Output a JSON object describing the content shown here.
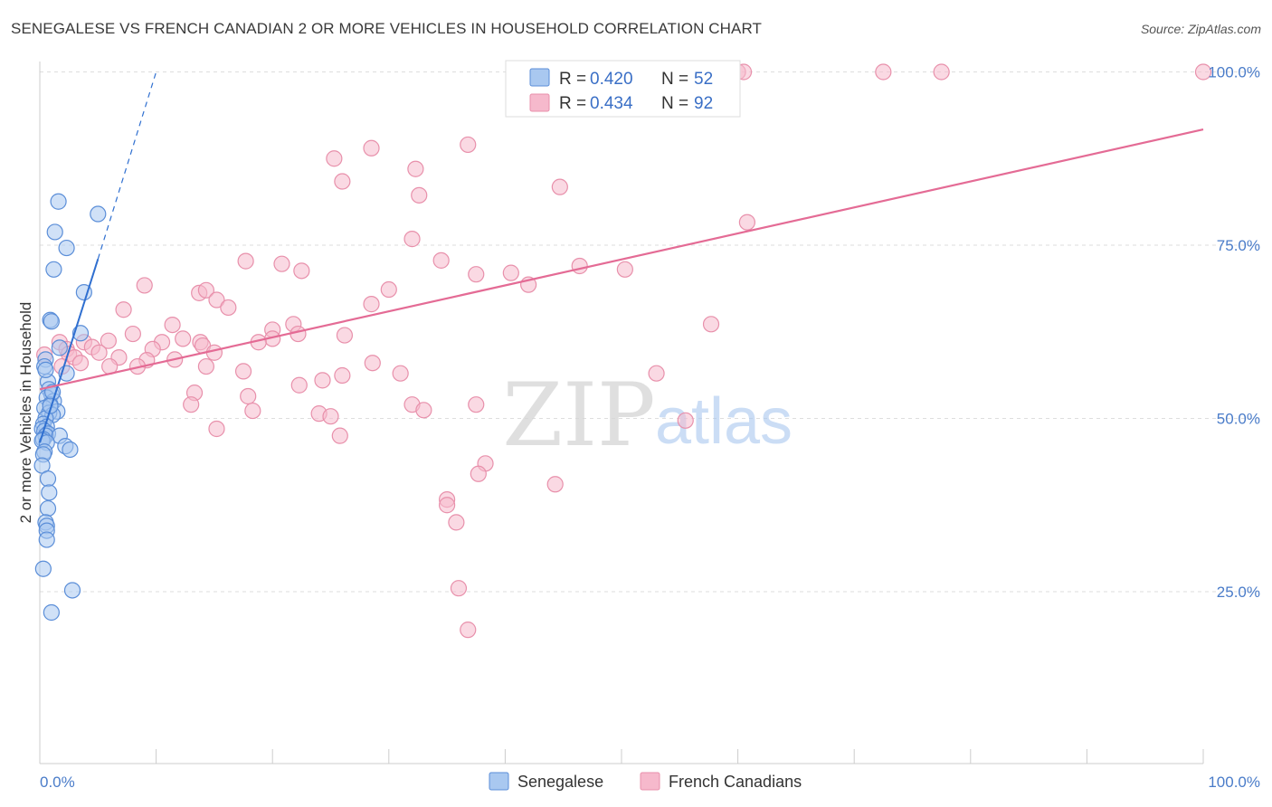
{
  "title": "SENEGALESE VS FRENCH CANADIAN 2 OR MORE VEHICLES IN HOUSEHOLD CORRELATION CHART",
  "source": "Source: ZipAtlas.com",
  "watermark": {
    "zip": "ZIP",
    "atlas": "atlas"
  },
  "colors": {
    "senegalese_fill": "#a9c8f0",
    "senegalese_stroke": "#5b8ed8",
    "senegalese_line": "#2f6fd0",
    "french_fill": "#f6b9cc",
    "french_stroke": "#e890ab",
    "french_line": "#e46b95",
    "tick_label": "#4a7cc9",
    "grid": "#dddddd"
  },
  "legend_top": [
    {
      "r_label": "R = ",
      "r_value": "0.420",
      "n_label": "N = ",
      "n_value": "52"
    },
    {
      "r_label": "R = ",
      "r_value": "0.434",
      "n_label": "N = ",
      "n_value": "92"
    }
  ],
  "chart_data": {
    "type": "scatter",
    "title": "SENEGALESE VS FRENCH CANADIAN 2 OR MORE VEHICLES IN HOUSEHOLD CORRELATION CHART",
    "xlabel": "",
    "ylabel": "2 or more Vehicles in Household",
    "xlim": [
      0,
      100
    ],
    "ylim": [
      0,
      103
    ],
    "x_tick_labels": [
      "0.0%",
      "100.0%"
    ],
    "y_ticks": [
      25,
      50,
      75,
      100
    ],
    "y_tick_labels": [
      "25.0%",
      "50.0%",
      "75.0%",
      "100.0%"
    ],
    "grid": "horizontal dashed",
    "legend_position": "bottom-center",
    "series": [
      {
        "name": "Senegalese",
        "r": 0.42,
        "n": 52,
        "trend": {
          "x0": 0.0,
          "y0": 46.5,
          "x1": 5.0,
          "y1": 73.0,
          "dashed_to": [
            10.0,
            100.0
          ]
        },
        "points": [
          [
            1.6,
            81.3
          ],
          [
            5.0,
            79.5
          ],
          [
            1.3,
            76.9
          ],
          [
            2.3,
            74.6
          ],
          [
            1.2,
            71.5
          ],
          [
            3.8,
            68.2
          ],
          [
            0.9,
            64.2
          ],
          [
            1.0,
            64.0
          ],
          [
            3.5,
            62.3
          ],
          [
            1.7,
            60.2
          ],
          [
            0.5,
            58.5
          ],
          [
            0.4,
            57.5
          ],
          [
            2.3,
            56.5
          ],
          [
            0.7,
            55.3
          ],
          [
            0.8,
            54.2
          ],
          [
            1.0,
            53.5
          ],
          [
            0.6,
            53.0
          ],
          [
            1.2,
            52.5
          ],
          [
            0.9,
            52.0
          ],
          [
            0.4,
            51.5
          ],
          [
            1.5,
            51.0
          ],
          [
            0.8,
            50.8
          ],
          [
            1.1,
            50.5
          ],
          [
            0.5,
            50.0
          ],
          [
            0.3,
            49.2
          ],
          [
            0.6,
            48.8
          ],
          [
            0.2,
            48.5
          ],
          [
            0.4,
            48.2
          ],
          [
            0.7,
            47.8
          ],
          [
            0.5,
            47.5
          ],
          [
            1.7,
            47.5
          ],
          [
            0.3,
            47.0
          ],
          [
            0.2,
            46.8
          ],
          [
            0.6,
            46.5
          ],
          [
            2.2,
            46.0
          ],
          [
            2.6,
            45.5
          ],
          [
            0.4,
            45.2
          ],
          [
            0.3,
            44.8
          ],
          [
            0.2,
            43.2
          ],
          [
            0.7,
            41.3
          ],
          [
            0.8,
            39.3
          ],
          [
            0.7,
            37.0
          ],
          [
            0.5,
            35.0
          ],
          [
            0.6,
            34.5
          ],
          [
            0.6,
            33.8
          ],
          [
            0.6,
            32.5
          ],
          [
            0.3,
            28.3
          ],
          [
            2.8,
            25.2
          ],
          [
            1.0,
            22.0
          ],
          [
            0.5,
            57.0
          ],
          [
            1.1,
            53.8
          ],
          [
            0.9,
            51.8
          ]
        ]
      },
      {
        "name": "French Canadians",
        "r": 0.434,
        "n": 92,
        "trend": {
          "x0": 0.0,
          "y0": 54.2,
          "x1": 100.0,
          "y1": 91.7
        },
        "points": [
          [
            48.0,
            100
          ],
          [
            48.3,
            100
          ],
          [
            60.0,
            100
          ],
          [
            60.5,
            100
          ],
          [
            72.5,
            100
          ],
          [
            77.5,
            100
          ],
          [
            100.0,
            100
          ],
          [
            36.8,
            89.5
          ],
          [
            28.5,
            89.0
          ],
          [
            25.3,
            87.5
          ],
          [
            32.3,
            86.0
          ],
          [
            26.0,
            84.2
          ],
          [
            44.7,
            83.4
          ],
          [
            32.6,
            82.2
          ],
          [
            60.8,
            78.3
          ],
          [
            32.0,
            75.9
          ],
          [
            17.7,
            72.7
          ],
          [
            34.5,
            72.8
          ],
          [
            20.8,
            72.3
          ],
          [
            22.5,
            71.3
          ],
          [
            40.5,
            71.0
          ],
          [
            50.3,
            71.5
          ],
          [
            46.4,
            72.0
          ],
          [
            37.5,
            70.8
          ],
          [
            42.0,
            69.3
          ],
          [
            9.0,
            69.2
          ],
          [
            30.0,
            68.6
          ],
          [
            13.7,
            68.1
          ],
          [
            14.3,
            68.5
          ],
          [
            15.2,
            67.1
          ],
          [
            28.5,
            66.5
          ],
          [
            16.2,
            66.0
          ],
          [
            7.2,
            65.7
          ],
          [
            11.4,
            63.5
          ],
          [
            21.8,
            63.6
          ],
          [
            20.0,
            62.8
          ],
          [
            57.7,
            63.6
          ],
          [
            8.0,
            62.2
          ],
          [
            22.2,
            62.2
          ],
          [
            26.2,
            62.0
          ],
          [
            12.3,
            61.5
          ],
          [
            20.0,
            61.5
          ],
          [
            1.7,
            61.0
          ],
          [
            3.8,
            61.0
          ],
          [
            5.9,
            61.2
          ],
          [
            10.5,
            61.0
          ],
          [
            13.8,
            61.0
          ],
          [
            18.8,
            61.0
          ],
          [
            4.5,
            60.3
          ],
          [
            14.0,
            60.5
          ],
          [
            2.3,
            60.0
          ],
          [
            9.7,
            60.0
          ],
          [
            15.0,
            59.5
          ],
          [
            2.5,
            59.3
          ],
          [
            5.1,
            59.5
          ],
          [
            0.4,
            59.2
          ],
          [
            3.0,
            58.8
          ],
          [
            6.8,
            58.8
          ],
          [
            9.2,
            58.4
          ],
          [
            3.5,
            58.0
          ],
          [
            11.6,
            58.5
          ],
          [
            28.6,
            58.0
          ],
          [
            1.9,
            57.5
          ],
          [
            6.0,
            57.5
          ],
          [
            8.4,
            57.5
          ],
          [
            14.3,
            57.5
          ],
          [
            17.5,
            56.8
          ],
          [
            31.0,
            56.5
          ],
          [
            26.0,
            56.2
          ],
          [
            53.0,
            56.5
          ],
          [
            24.3,
            55.5
          ],
          [
            22.3,
            54.8
          ],
          [
            13.3,
            53.7
          ],
          [
            17.9,
            53.2
          ],
          [
            13.0,
            52.0
          ],
          [
            32.0,
            52.0
          ],
          [
            37.5,
            52.0
          ],
          [
            18.3,
            51.1
          ],
          [
            33.0,
            51.2
          ],
          [
            24.0,
            50.7
          ],
          [
            25.0,
            50.3
          ],
          [
            55.5,
            49.7
          ],
          [
            15.2,
            48.5
          ],
          [
            25.8,
            47.5
          ],
          [
            38.3,
            43.5
          ],
          [
            37.7,
            42.0
          ],
          [
            44.3,
            40.5
          ],
          [
            35.0,
            38.3
          ],
          [
            35.0,
            37.5
          ],
          [
            35.8,
            35.0
          ],
          [
            36.0,
            25.5
          ],
          [
            36.8,
            19.5
          ]
        ]
      }
    ]
  }
}
